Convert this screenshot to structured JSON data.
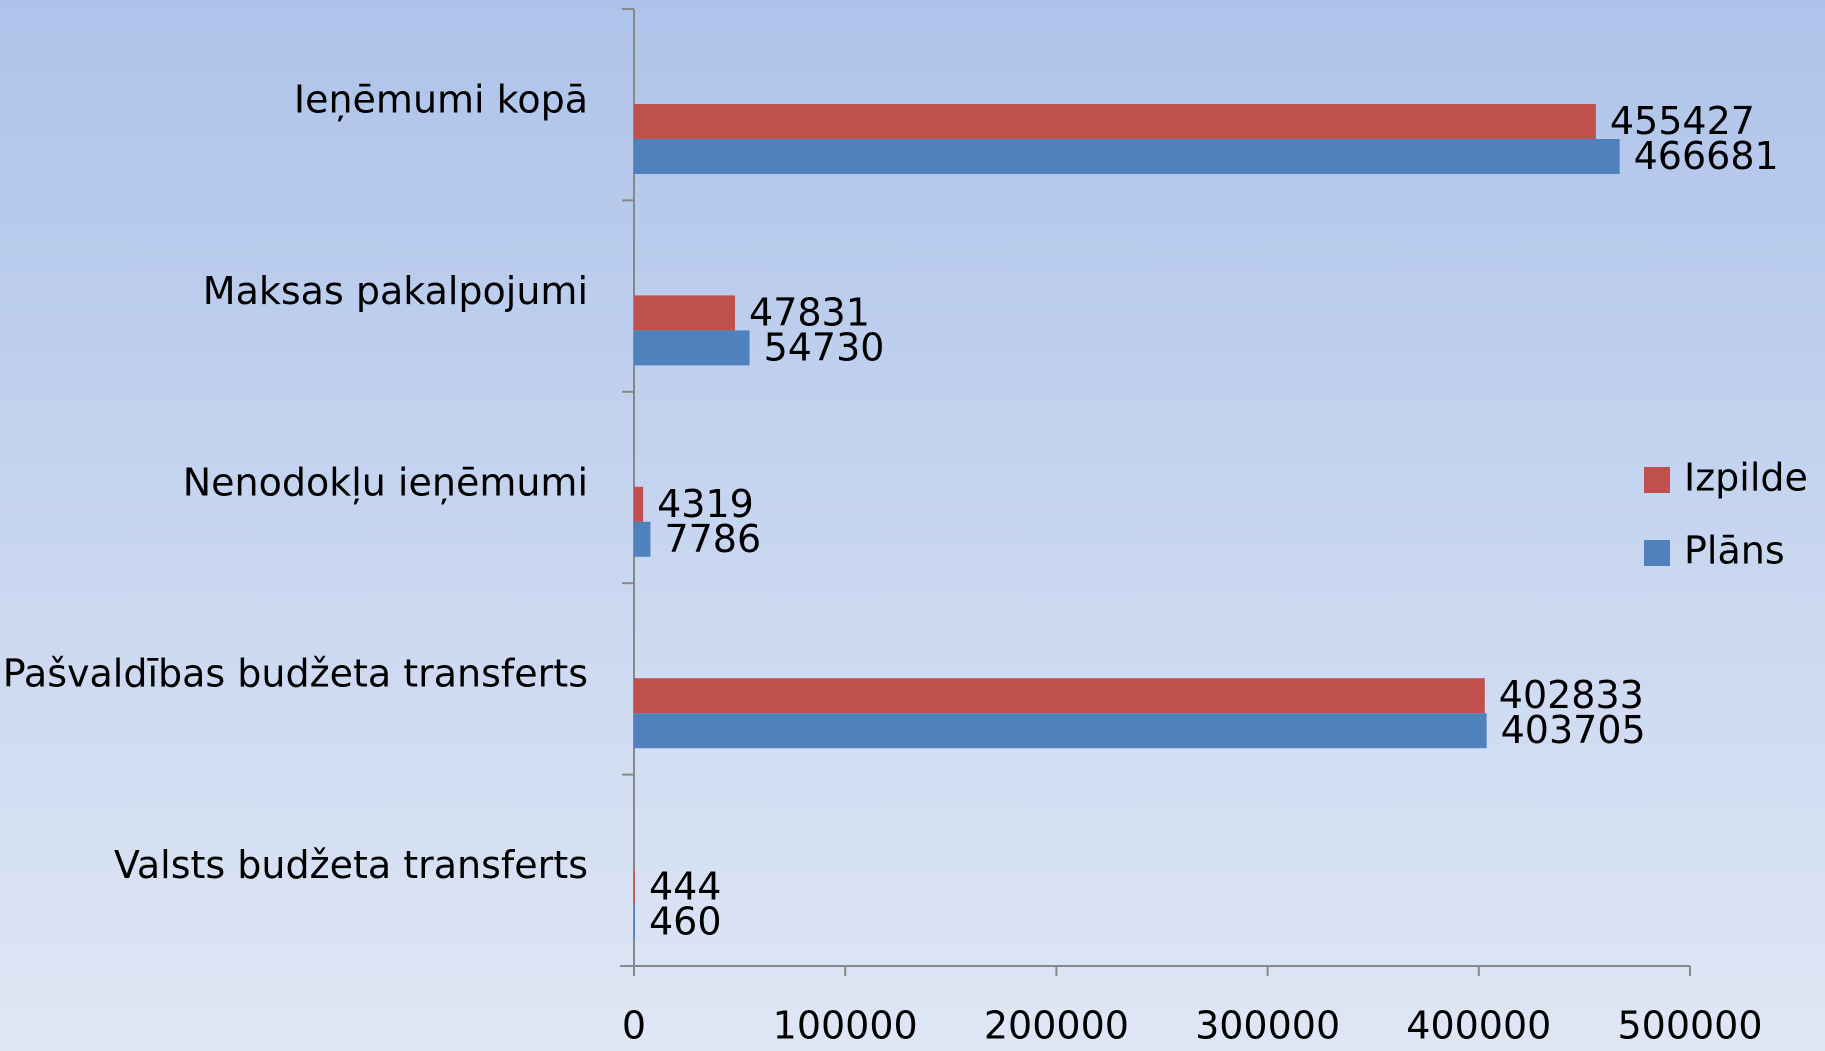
{
  "chart_data": {
    "type": "bar",
    "orientation": "horizontal",
    "categories": [
      "Ieņēmumi kopā",
      "Maksas pakalpojumi",
      "Nenodokļu ieņēmumi",
      "Pašvaldības budžeta transferts",
      "Valsts budžeta transferts"
    ],
    "series": [
      {
        "name": "Izpilde",
        "color": "#c0504d",
        "values": [
          455427,
          47831,
          4319,
          402833,
          444
        ]
      },
      {
        "name": "Plāns",
        "color": "#4f81bd",
        "values": [
          466681,
          54730,
          7786,
          403705,
          460
        ]
      }
    ],
    "xlim": [
      0,
      500000
    ],
    "xticks": [
      0,
      100000,
      200000,
      300000,
      400000,
      500000
    ],
    "legend": "right",
    "data_labels": true
  }
}
